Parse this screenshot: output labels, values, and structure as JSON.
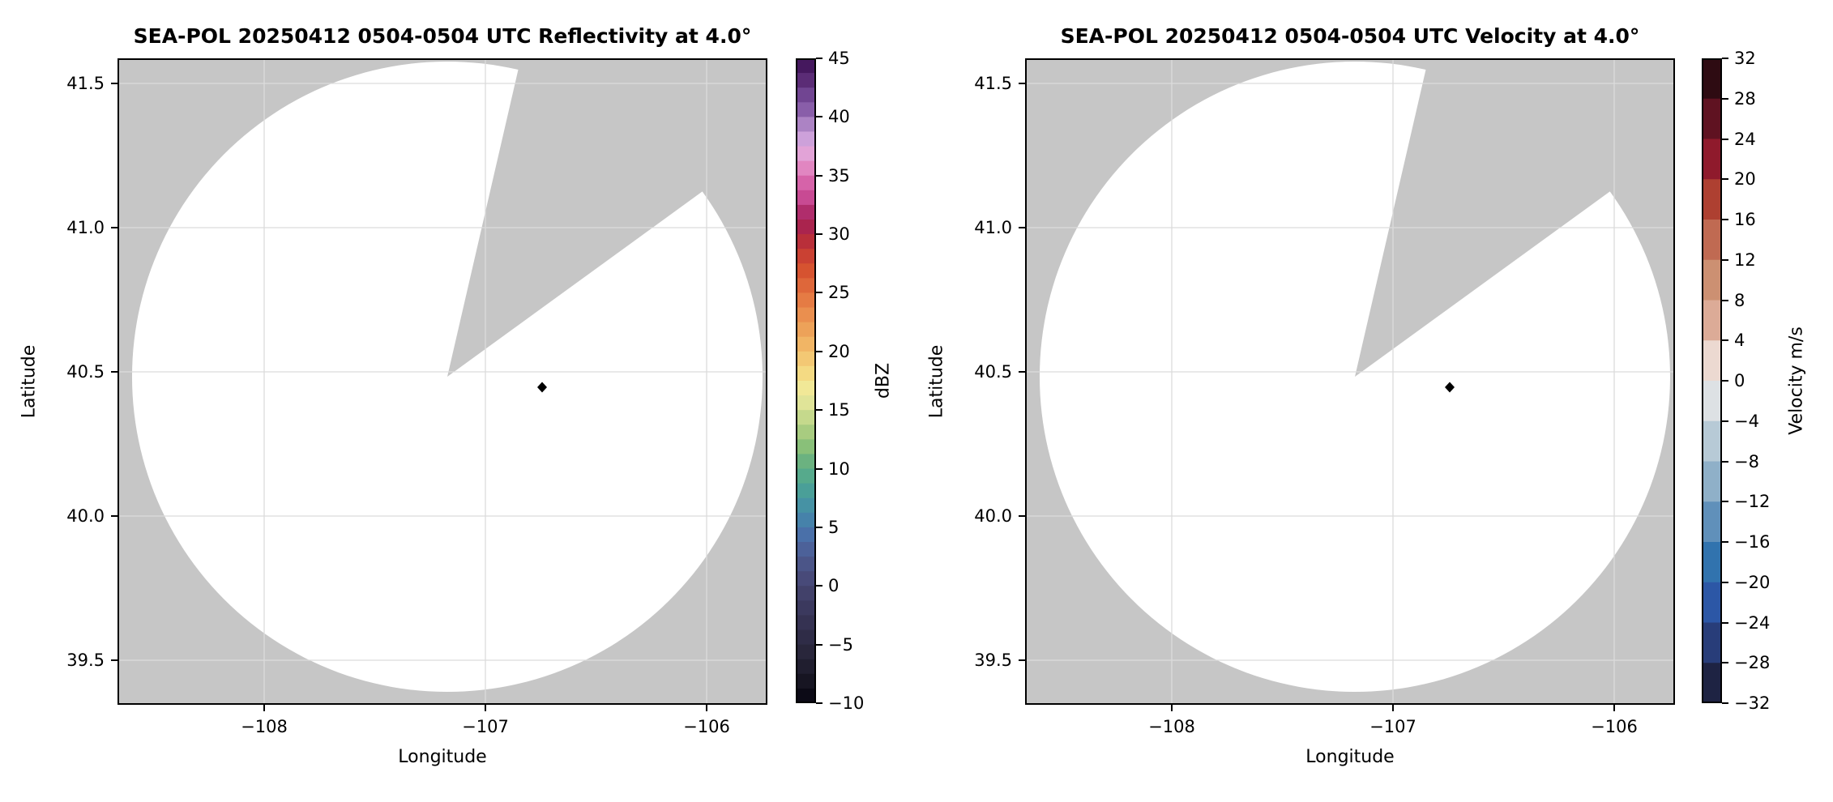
{
  "figure": {
    "background": "#ffffff"
  },
  "panels": [
    {
      "id": "reflectivity",
      "title": "SEA-POL 20250412 0504-0504 UTC Reflectivity at 4.0°",
      "xlabel": "Longitude",
      "ylabel": "Latitude",
      "x_tick_labels": [
        "−108",
        "−107",
        "−106"
      ],
      "y_tick_labels": [
        "41.5",
        "41.0",
        "40.5",
        "40.0",
        "39.5"
      ]
    },
    {
      "id": "velocity",
      "title": "SEA-POL 20250412 0504-0504 UTC Velocity at 4.0°",
      "xlabel": "Longitude",
      "ylabel": "Latitude",
      "x_tick_labels": [
        "−108",
        "−107",
        "−106"
      ],
      "y_tick_labels": [
        "41.5",
        "41.0",
        "40.5",
        "40.0",
        "39.5"
      ]
    }
  ],
  "colorbars": [
    {
      "id": "dbz",
      "label": "dBZ",
      "tick_labels": [
        "45",
        "40",
        "35",
        "30",
        "25",
        "20",
        "15",
        "10",
        "5",
        "0",
        "−5",
        "−10"
      ],
      "value_range": [
        -10,
        45
      ],
      "gradient_stops": [
        {
          "v": 45,
          "c": "#3a0f53"
        },
        {
          "v": 43.5,
          "c": "#54246d"
        },
        {
          "v": 42,
          "c": "#6f4390"
        },
        {
          "v": 40.5,
          "c": "#8b60ab"
        },
        {
          "v": 39.5,
          "c": "#a87fc1"
        },
        {
          "v": 38.5,
          "c": "#c49bd8"
        },
        {
          "v": 37.5,
          "c": "#dcaade"
        },
        {
          "v": 36.5,
          "c": "#e59ed2"
        },
        {
          "v": 35.5,
          "c": "#e083bf"
        },
        {
          "v": 34.5,
          "c": "#d765ab"
        },
        {
          "v": 33,
          "c": "#c74791"
        },
        {
          "v": 31.5,
          "c": "#a82460"
        },
        {
          "v": 30,
          "c": "#ab2441"
        },
        {
          "v": 29,
          "c": "#c23536"
        },
        {
          "v": 27,
          "c": "#d5512f"
        },
        {
          "v": 25,
          "c": "#e2713f"
        },
        {
          "v": 23,
          "c": "#ea9150"
        },
        {
          "v": 21,
          "c": "#f0af60"
        },
        {
          "v": 19.5,
          "c": "#f3c672"
        },
        {
          "v": 18,
          "c": "#f4dc85"
        },
        {
          "v": 17,
          "c": "#f2e896"
        },
        {
          "v": 16,
          "c": "#e8e79b"
        },
        {
          "v": 15,
          "c": "#d3df92"
        },
        {
          "v": 13.5,
          "c": "#b1d083"
        },
        {
          "v": 12,
          "c": "#8cc178"
        },
        {
          "v": 10.5,
          "c": "#68b181"
        },
        {
          "v": 9,
          "c": "#50a78f"
        },
        {
          "v": 7.5,
          "c": "#46999f"
        },
        {
          "v": 6,
          "c": "#4587aa"
        },
        {
          "v": 4.5,
          "c": "#4a72ab"
        },
        {
          "v": 3,
          "c": "#4c5f97"
        },
        {
          "v": 1,
          "c": "#4a4d7d"
        },
        {
          "v": -1,
          "c": "#403e66"
        },
        {
          "v": -3.5,
          "c": "#33304f"
        },
        {
          "v": -6,
          "c": "#272438"
        },
        {
          "v": -8,
          "c": "#181623"
        },
        {
          "v": -10,
          "c": "#070510"
        }
      ]
    },
    {
      "id": "velocity",
      "label": "Velocity m/s",
      "tick_labels": [
        "32",
        "28",
        "24",
        "20",
        "16",
        "12",
        "8",
        "4",
        "0",
        "−4",
        "−8",
        "−12",
        "−16",
        "−20",
        "−24",
        "−28",
        "−32"
      ],
      "value_range": [
        -32,
        32
      ],
      "band_colors_top_to_bottom": [
        "#2e0b12",
        "#5f1221",
        "#8f1a2c",
        "#ae4031",
        "#c06a52",
        "#cc9072",
        "#dcab97",
        "#ecd9d1",
        "#dde1e4",
        "#b7cad6",
        "#8fb0c8",
        "#6090ba",
        "#3173ae",
        "#2c57a6",
        "#283d79",
        "#1e2343"
      ]
    }
  ],
  "colors": {
    "no_data_gray": "#c6c6c6",
    "scan_area_white": "#ffffff",
    "gridline": "#dcdcdc",
    "spine": "#000000",
    "marker": "#000000"
  },
  "chart_data": {
    "type": "heatmap",
    "subtype": "radar-ppi-pair",
    "panels": [
      {
        "title": "SEA-POL 20250412 0504-0504 UTC Reflectivity at 4.0°",
        "field": "Reflectivity",
        "units": "dBZ",
        "colorbar_range": [
          -10,
          45
        ],
        "colorbar_tick_step": 5,
        "data_points": "no echoes displayed; scan disk rendered empty (white)"
      },
      {
        "title": "SEA-POL 20250412 0504-0504 UTC Velocity at 4.0°",
        "field": "Velocity",
        "units": "m/s",
        "colorbar_range": [
          -32,
          32
        ],
        "colorbar_tick_step": 4,
        "data_points": "no echoes displayed; scan disk rendered empty (white)"
      }
    ],
    "xlabel": "Longitude",
    "ylabel": "Latitude",
    "xlim": [
      -108.66,
      -105.73
    ],
    "ylim": [
      39.35,
      41.59
    ],
    "x_ticks": [
      -108,
      -107,
      -106
    ],
    "y_ticks": [
      39.5,
      40.0,
      40.5,
      41.0,
      41.5
    ],
    "grid": true,
    "radar_center": {
      "lon": -107.17,
      "lat": 40.49
    },
    "scan_radius_lon_deg": 1.43,
    "missing_sector_azimuth_deg": [
      13,
      54
    ],
    "marker": {
      "lon": -106.74,
      "lat": 40.45,
      "shape": "diamond",
      "color": "#000000"
    }
  }
}
